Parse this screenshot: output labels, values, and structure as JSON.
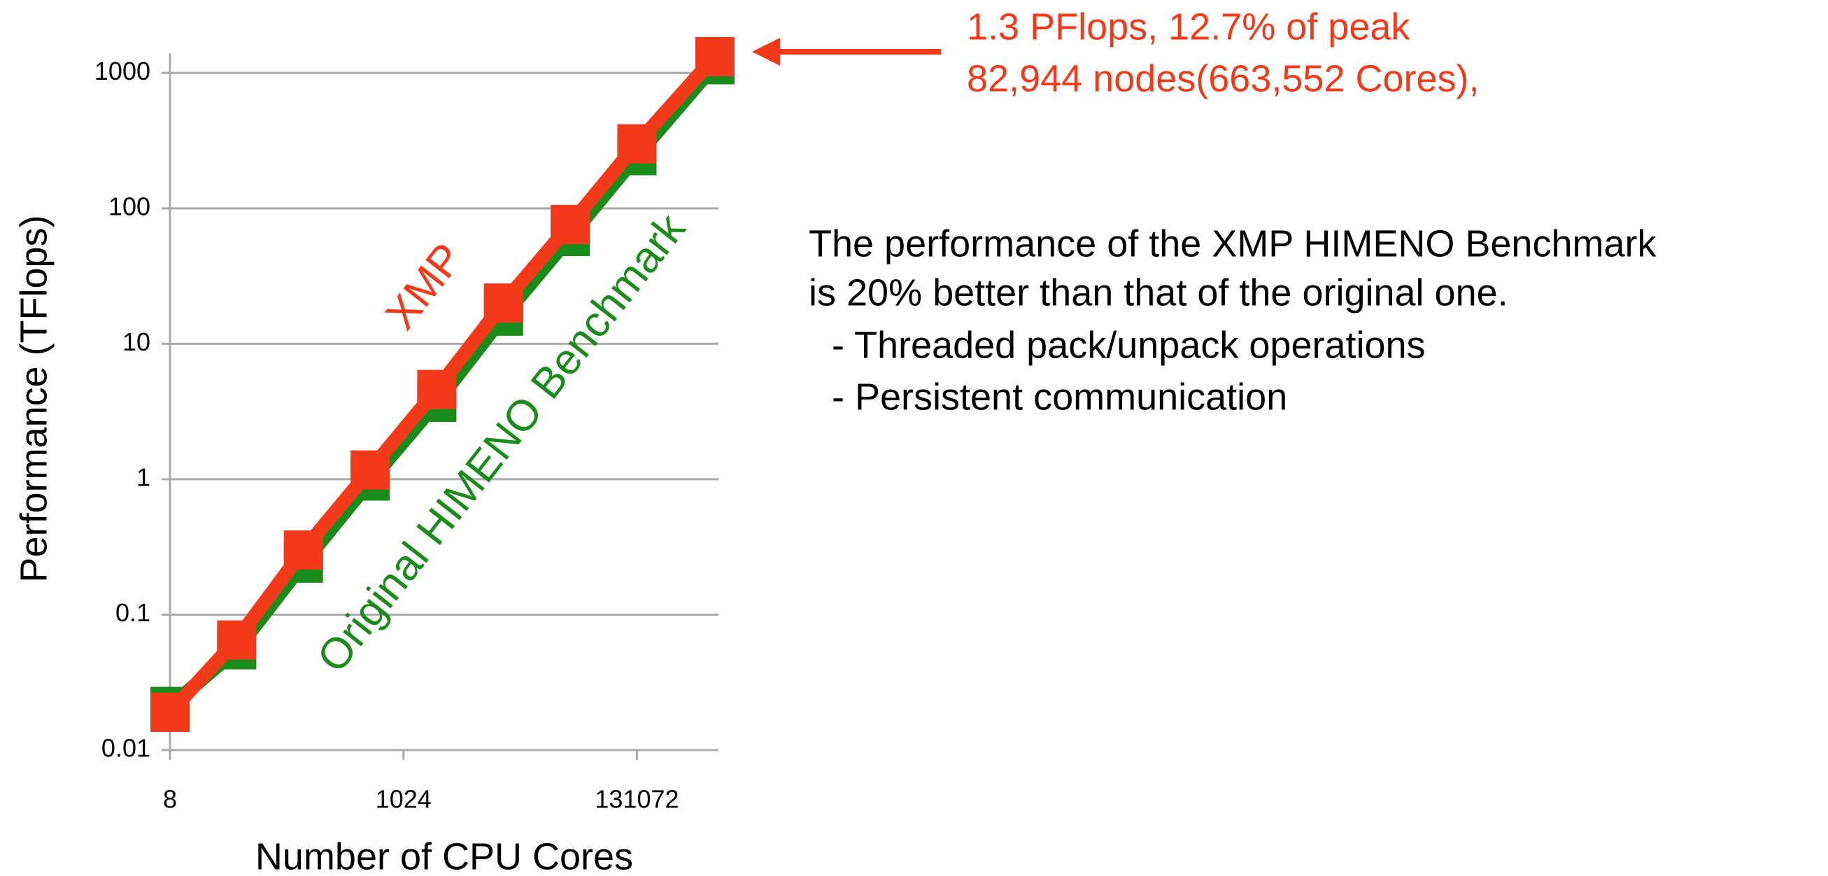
{
  "chart_data": {
    "type": "line",
    "x_label": "Number of CPU Cores",
    "y_label": "Performance (TFlops)",
    "x": [
      8,
      32,
      128,
      512,
      2048,
      8192,
      32768,
      131072,
      663552
    ],
    "series": [
      {
        "name": "Original HIMENO Benchmark",
        "color": "#1a8c1a",
        "values": [
          0.021,
          0.055,
          0.24,
          0.97,
          3.7,
          16,
          62,
          245,
          1150
        ]
      },
      {
        "name": "XMP",
        "color": "#f23a1a",
        "values": [
          0.019,
          0.065,
          0.3,
          1.17,
          4.6,
          20,
          76,
          300,
          1320
        ]
      }
    ],
    "xlim": [
      8,
      663552
    ],
    "xticks": [
      8,
      1024,
      131072
    ],
    "ylim": [
      0.01,
      1400
    ],
    "yticks": [
      0.01,
      0.1,
      1,
      10,
      100,
      1000
    ],
    "xlog": true,
    "ylog": true,
    "grid": true,
    "annotations": {
      "peak": [
        "1.3 PFlops, 12.7% of peak",
        "82,944 nodes(663,552 Cores),"
      ],
      "note": [
        "The performance of the XMP HIMENO Benchmark",
        "is 20% better than that of the original one.",
        "- Threaded pack/unpack operations",
        "- Persistent communication"
      ]
    }
  }
}
